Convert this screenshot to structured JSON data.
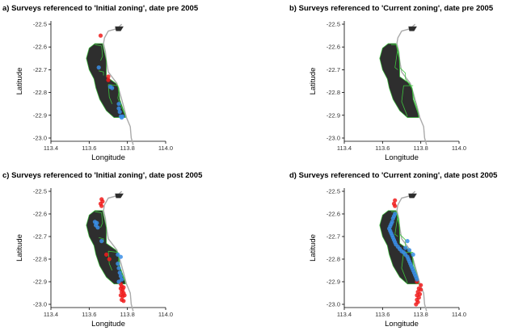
{
  "chart_data": [
    {
      "type": "scatter",
      "title": "a) Surveys referenced to 'Initial zoning', date pre 2005",
      "xlabel": "Longitude",
      "ylabel": "Latitude",
      "xlim": [
        113.4,
        114.0
      ],
      "ylim": [
        -23.0,
        -22.5
      ],
      "xticks": [
        "113.4",
        "113.6",
        "113.8",
        "114.0"
      ],
      "yticks": [
        "-22.5",
        "-22.6",
        "-22.7",
        "-22.8",
        "-22.9",
        "-23.0"
      ],
      "zoning": "initial",
      "grid": false,
      "legend": "none",
      "colors": {
        "land": "#2e2e2e",
        "zone_line": "#3ec43e",
        "blue": "#3a8ee6",
        "red": "#f01c1c",
        "coast": "#aaaaaa"
      },
      "series": [
        {
          "color": "red",
          "points": [
            [
              113.66,
              -22.55
            ],
            [
              113.7,
              -22.73
            ],
            [
              113.7,
              -22.745
            ]
          ]
        },
        {
          "color": "blue",
          "points": [
            [
              113.65,
              -22.69
            ],
            [
              113.71,
              -22.775
            ],
            [
              113.72,
              -22.78
            ],
            [
              113.755,
              -22.85
            ],
            [
              113.755,
              -22.87
            ],
            [
              113.76,
              -22.885
            ],
            [
              113.765,
              -22.905
            ],
            [
              113.77,
              -22.91
            ],
            [
              113.775,
              -22.905
            ]
          ]
        }
      ]
    },
    {
      "type": "scatter",
      "title": "b) Surveys referenced to 'Current zoning', date pre 2005",
      "xlabel": "Longitude",
      "ylabel": "Latitude",
      "xlim": [
        113.4,
        114.0
      ],
      "ylim": [
        -23.0,
        -22.5
      ],
      "xticks": [
        "113.4",
        "113.6",
        "113.8",
        "114.0"
      ],
      "yticks": [
        "-22.5",
        "-22.6",
        "-22.7",
        "-22.8",
        "-22.9",
        "-23.0"
      ],
      "zoning": "current",
      "grid": false,
      "legend": "none",
      "colors": {
        "land": "#2e2e2e",
        "zone_line": "#3ec43e",
        "blue": "#3a8ee6",
        "red": "#f01c1c",
        "coast": "#aaaaaa"
      },
      "series": []
    },
    {
      "type": "scatter",
      "title": "c) Surveys referenced to 'Initial zoning', date post 2005",
      "xlabel": "Longitude",
      "ylabel": "Latitude",
      "xlim": [
        113.4,
        114.0
      ],
      "ylim": [
        -23.0,
        -22.5
      ],
      "xticks": [
        "113.4",
        "113.6",
        "113.8",
        "114.0"
      ],
      "yticks": [
        "-22.5",
        "-22.6",
        "-22.7",
        "-22.8",
        "-22.9",
        "-23.0"
      ],
      "zoning": "initial",
      "grid": false,
      "legend": "none",
      "colors": {
        "land": "#2e2e2e",
        "zone_line": "#3ec43e",
        "blue": "#3a8ee6",
        "red": "#f01c1c",
        "coast": "#aaaaaa"
      },
      "series": [
        {
          "color": "red",
          "points": [
            [
              113.665,
              -22.535
            ],
            [
              113.67,
              -22.545
            ],
            [
              113.66,
              -22.555
            ],
            [
              113.665,
              -22.565
            ],
            [
              113.69,
              -22.78
            ],
            [
              113.705,
              -22.8
            ],
            [
              113.765,
              -22.91
            ],
            [
              113.77,
              -22.92
            ],
            [
              113.765,
              -22.93
            ],
            [
              113.775,
              -22.935
            ],
            [
              113.78,
              -22.925
            ],
            [
              113.77,
              -22.945
            ],
            [
              113.78,
              -22.95
            ],
            [
              113.765,
              -22.96
            ],
            [
              113.775,
              -22.965
            ],
            [
              113.785,
              -22.96
            ],
            [
              113.77,
              -22.98
            ],
            [
              113.78,
              -22.985
            ]
          ]
        },
        {
          "color": "blue",
          "points": [
            [
              113.63,
              -22.635
            ],
            [
              113.64,
              -22.64
            ],
            [
              113.635,
              -22.65
            ],
            [
              113.645,
              -22.66
            ],
            [
              113.665,
              -22.72
            ],
            [
              113.75,
              -22.78
            ],
            [
              113.765,
              -22.79
            ],
            [
              113.75,
              -22.82
            ],
            [
              113.755,
              -22.84
            ],
            [
              113.76,
              -22.86
            ],
            [
              113.765,
              -22.875
            ],
            [
              113.77,
              -22.89
            ],
            [
              113.755,
              -22.9
            ]
          ]
        }
      ]
    },
    {
      "type": "scatter",
      "title": "d) Surveys referenced to 'Current zoning', date post 2005",
      "xlabel": "Longitude",
      "ylabel": "Latitude",
      "xlim": [
        113.4,
        114.0
      ],
      "ylim": [
        -23.0,
        -22.5
      ],
      "xticks": [
        "113.4",
        "113.6",
        "113.8",
        "114.0"
      ],
      "yticks": [
        "-22.5",
        "-22.6",
        "-22.7",
        "-22.8",
        "-22.9",
        "-23.0"
      ],
      "zoning": "current",
      "grid": false,
      "legend": "none",
      "colors": {
        "land": "#2e2e2e",
        "zone_line": "#3ec43e",
        "blue": "#3a8ee6",
        "red": "#f01c1c",
        "coast": "#aaaaaa"
      },
      "series": [
        {
          "color": "red",
          "points": [
            [
              113.665,
              -22.54
            ],
            [
              113.66,
              -22.555
            ],
            [
              113.665,
              -22.565
            ],
            [
              113.78,
              -22.9
            ],
            [
              113.8,
              -22.915
            ],
            [
              113.79,
              -22.93
            ],
            [
              113.8,
              -22.935
            ],
            [
              113.785,
              -22.945
            ],
            [
              113.795,
              -22.955
            ],
            [
              113.78,
              -22.96
            ],
            [
              113.79,
              -22.97
            ],
            [
              113.78,
              -22.98
            ],
            [
              113.785,
              -22.99
            ],
            [
              113.775,
              -23.0
            ]
          ]
        },
        {
          "color": "blue",
          "points": [
            [
              113.665,
              -22.6
            ],
            [
              113.66,
              -22.61
            ],
            [
              113.655,
              -22.62
            ],
            [
              113.65,
              -22.635
            ],
            [
              113.645,
              -22.645
            ],
            [
              113.64,
              -22.655
            ],
            [
              113.635,
              -22.665
            ],
            [
              113.64,
              -22.675
            ],
            [
              113.645,
              -22.685
            ],
            [
              113.65,
              -22.695
            ],
            [
              113.655,
              -22.705
            ],
            [
              113.66,
              -22.715
            ],
            [
              113.665,
              -22.725
            ],
            [
              113.67,
              -22.735
            ],
            [
              113.68,
              -22.745
            ],
            [
              113.69,
              -22.755
            ],
            [
              113.7,
              -22.765
            ],
            [
              113.71,
              -22.77
            ],
            [
              113.72,
              -22.78
            ],
            [
              113.73,
              -22.79
            ],
            [
              113.735,
              -22.8
            ],
            [
              113.74,
              -22.81
            ],
            [
              113.745,
              -22.82
            ],
            [
              113.75,
              -22.83
            ],
            [
              113.755,
              -22.84
            ],
            [
              113.76,
              -22.85
            ],
            [
              113.765,
              -22.86
            ],
            [
              113.77,
              -22.87
            ],
            [
              113.775,
              -22.88
            ],
            [
              113.78,
              -22.89
            ],
            [
              113.73,
              -22.72
            ],
            [
              113.74,
              -22.76
            ],
            [
              113.72,
              -22.75
            ],
            [
              113.76,
              -22.78
            ]
          ]
        }
      ]
    }
  ]
}
